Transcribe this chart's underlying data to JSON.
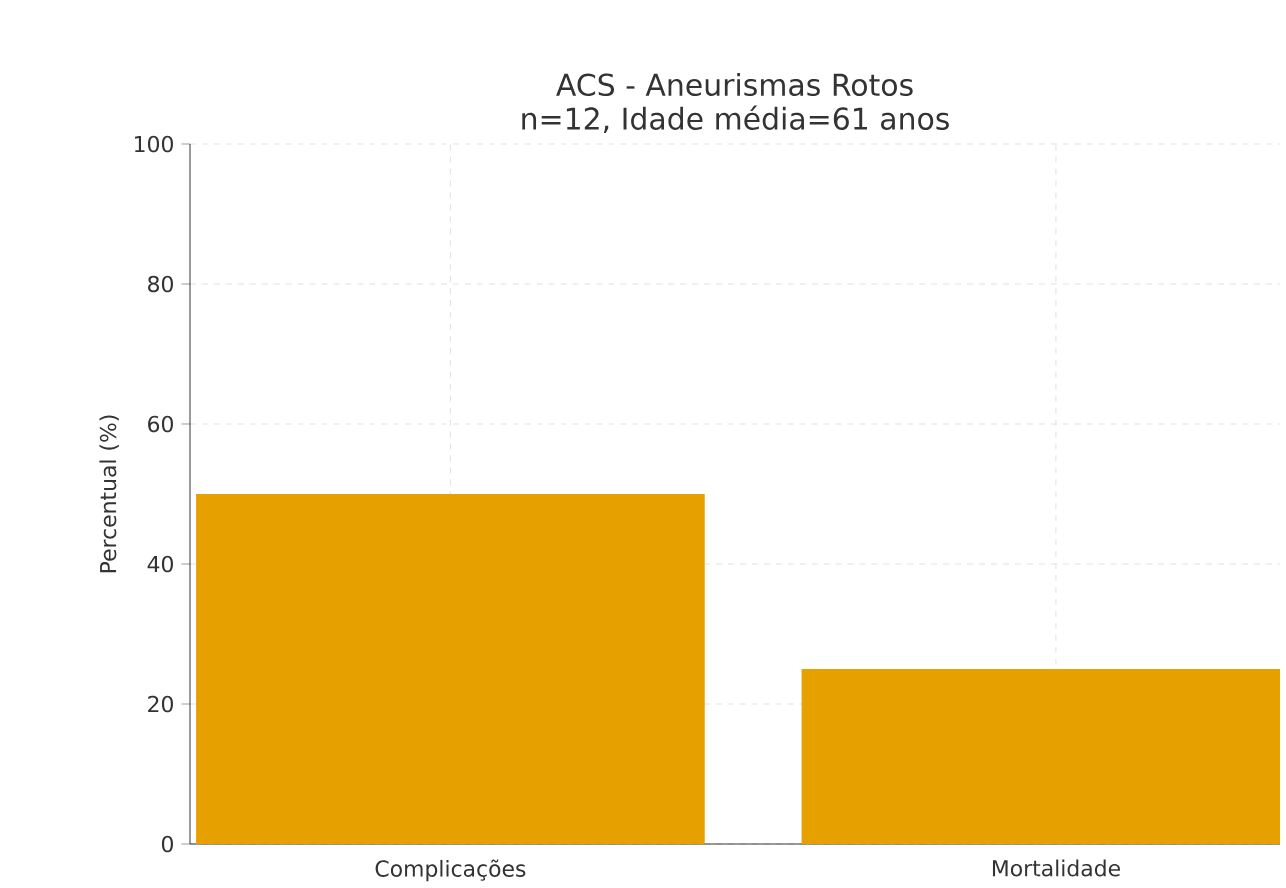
{
  "chart_data": {
    "type": "bar",
    "title": "ACS - Aneurismas Rotos",
    "subtitle": "n=12, Idade média=61 anos",
    "ylabel": "Percentual (%)",
    "categories": [
      "Complicações",
      "Mortalidade"
    ],
    "values": [
      50,
      25
    ],
    "color": "#e6a000",
    "ylim": [
      0,
      100
    ],
    "yticks": [
      0,
      20,
      40,
      60,
      80,
      100
    ],
    "grid": true
  }
}
